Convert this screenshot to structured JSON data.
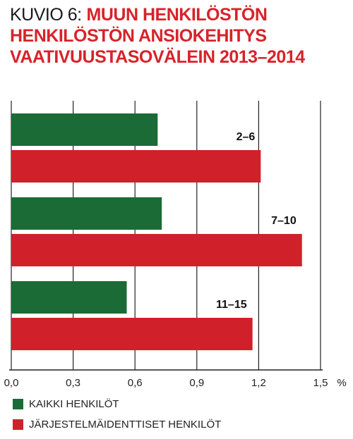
{
  "title": {
    "prefix": "KUVIO 6:",
    "lines": [
      "MUUN HENKILÖSTÖN",
      "HENKILÖSTÖN ANSIOKEHITYS",
      "VAATIVUUSTASOVÄLEIN 2013–2014"
    ]
  },
  "colors": {
    "series_a": "#1a6b35",
    "series_b": "#d0202a",
    "title": "#d7232a"
  },
  "chart_data": {
    "type": "bar",
    "orientation": "horizontal",
    "categories": [
      "2–6",
      "7–10",
      "11–15"
    ],
    "series": [
      {
        "name": "KAIKKI HENKILÖT",
        "values": [
          0.71,
          0.73,
          0.56
        ]
      },
      {
        "name": "JÄRJESTELMÄIDENTTISET HENKILÖT",
        "values": [
          1.21,
          1.41,
          1.17
        ]
      }
    ],
    "xlim": [
      0,
      1.5
    ],
    "xticks": [
      "0,0",
      "0,3",
      "0,6",
      "0,9",
      "1,2",
      "1,5"
    ],
    "xunit": "%",
    "grid": true,
    "legend_position": "bottom-left"
  }
}
